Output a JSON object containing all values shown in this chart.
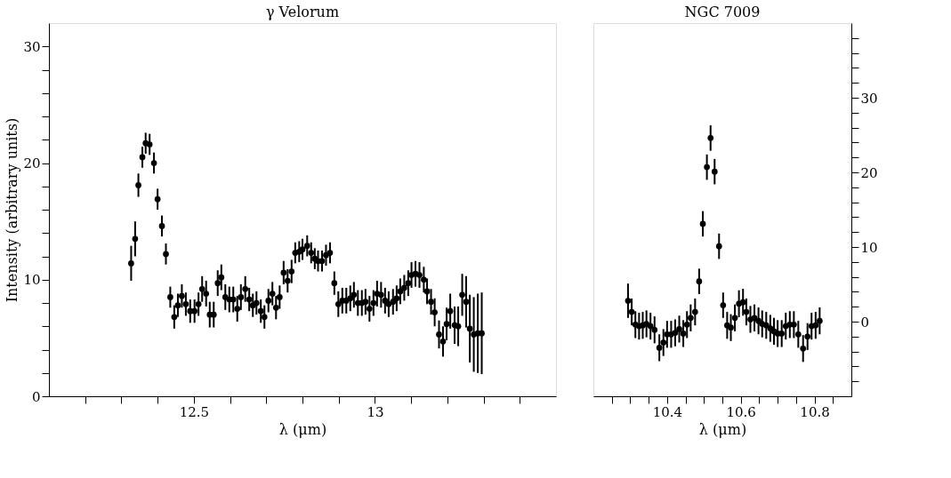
{
  "chart_data": [
    {
      "type": "scatter",
      "title": "γ Velorum",
      "xlabel": "λ (μm)",
      "ylabel": "Intensity (arbitrary units)",
      "marker": "circle",
      "grid": false,
      "xlim": [
        12.1,
        13.5
      ],
      "ylim": [
        0,
        32
      ],
      "xticks": [
        {
          "value": 12.2,
          "label": null
        },
        {
          "value": 12.3,
          "label": null
        },
        {
          "value": 12.4,
          "label": null
        },
        12.5,
        {
          "value": 12.6,
          "label": null
        },
        {
          "value": 12.7,
          "label": null
        },
        {
          "value": 12.8,
          "label": null
        },
        {
          "value": 12.9,
          "label": null
        },
        13,
        {
          "value": 13.1,
          "label": null
        },
        {
          "value": 13.2,
          "label": null
        },
        {
          "value": 13.3,
          "label": null
        },
        {
          "value": 13.4,
          "label": null
        }
      ],
      "yticks": [
        0,
        {
          "value": 2,
          "label": null
        },
        {
          "value": 4,
          "label": null
        },
        {
          "value": 6,
          "label": null
        },
        {
          "value": 8,
          "label": null
        },
        10,
        {
          "value": 12,
          "label": null
        },
        {
          "value": 14,
          "label": null
        },
        {
          "value": 16,
          "label": null
        },
        {
          "value": 18,
          "label": null
        },
        20,
        {
          "value": 22,
          "label": null
        },
        {
          "value": 24,
          "label": null
        },
        {
          "value": 26,
          "label": null
        },
        {
          "value": 28,
          "label": null
        },
        30
      ],
      "series": [
        {
          "color": "#000000",
          "x": [
            12.327,
            12.338,
            12.347,
            12.358,
            12.367,
            12.378,
            12.39,
            12.4,
            12.412,
            12.423,
            12.435,
            12.446,
            12.456,
            12.467,
            12.478,
            12.49,
            12.502,
            12.513,
            12.523,
            12.534,
            12.544,
            12.555,
            12.566,
            12.576,
            12.587,
            12.598,
            12.609,
            12.62,
            12.63,
            12.642,
            12.653,
            12.663,
            12.673,
            12.685,
            12.695,
            12.706,
            12.717,
            12.727,
            12.737,
            12.748,
            12.759,
            12.77,
            12.78,
            12.791,
            12.8,
            12.813,
            12.824,
            12.834,
            12.843,
            12.854,
            12.865,
            12.876,
            12.888,
            12.899,
            12.91,
            12.921,
            12.932,
            12.942,
            12.953,
            12.964,
            12.974,
            12.985,
            12.996,
            13.006,
            13.017,
            13.028,
            13.038,
            13.05,
            13.06,
            13.07,
            13.081,
            13.092,
            13.101,
            13.112,
            13.123,
            13.135,
            13.144,
            13.155,
            13.165,
            13.177,
            13.188,
            13.198,
            13.208,
            13.22,
            13.23,
            13.241,
            13.252,
            13.262,
            13.273,
            13.284,
            13.295
          ],
          "values": [
            11.4,
            13.5,
            18.1,
            20.5,
            21.7,
            21.6,
            20.0,
            16.9,
            14.6,
            12.2,
            8.5,
            6.8,
            7.8,
            8.6,
            7.9,
            7.3,
            7.3,
            7.9,
            9.2,
            8.8,
            7.0,
            7.0,
            9.7,
            10.2,
            8.5,
            8.3,
            8.3,
            7.5,
            8.5,
            9.2,
            8.3,
            7.8,
            8.0,
            7.3,
            6.8,
            8.2,
            8.8,
            7.6,
            8.5,
            10.6,
            9.9,
            10.7,
            12.3,
            12.4,
            12.6,
            12.9,
            12.3,
            11.8,
            11.6,
            11.6,
            12.1,
            12.3,
            9.7,
            7.9,
            8.2,
            8.2,
            8.4,
            8.7,
            8.0,
            8.0,
            8.1,
            7.5,
            8.0,
            8.8,
            8.7,
            8.2,
            7.9,
            8.1,
            8.4,
            9.0,
            9.3,
            9.7,
            10.4,
            10.5,
            10.4,
            10.0,
            9.0,
            8.1,
            7.2,
            5.3,
            4.7,
            6.2,
            7.3,
            6.1,
            6.0,
            8.7,
            8.1,
            5.8,
            5.3,
            5.4,
            5.4
          ],
          "errors": [
            1.5,
            1.5,
            1.0,
            0.9,
            0.9,
            0.9,
            0.9,
            0.9,
            0.9,
            0.9,
            0.9,
            1.0,
            1.0,
            1.0,
            1.0,
            1.0,
            1.0,
            1.0,
            1.1,
            1.1,
            1.1,
            1.1,
            1.1,
            1.1,
            1.1,
            1.1,
            1.1,
            1.1,
            1.1,
            1.1,
            1.0,
            1.0,
            1.0,
            1.0,
            1.0,
            1.0,
            1.0,
            1.0,
            1.0,
            1.0,
            1.0,
            1.0,
            0.9,
            0.9,
            0.9,
            0.9,
            0.9,
            0.9,
            0.9,
            0.9,
            0.9,
            0.9,
            1.0,
            1.1,
            1.1,
            1.1,
            1.1,
            1.1,
            1.1,
            1.1,
            1.1,
            1.1,
            1.1,
            1.1,
            1.1,
            1.1,
            1.1,
            1.1,
            1.1,
            1.1,
            1.1,
            1.1,
            1.1,
            1.1,
            1.1,
            1.1,
            1.1,
            1.1,
            1.2,
            1.2,
            1.3,
            1.4,
            1.5,
            1.6,
            1.7,
            1.8,
            2.2,
            2.9,
            3.2,
            3.4,
            3.5
          ]
        }
      ]
    },
    {
      "type": "scatter",
      "title": "NGC 7009",
      "xlabel": "λ (μm)",
      "marker": "circle",
      "grid": false,
      "xlim": [
        10.2,
        10.9
      ],
      "y2lim": [
        -10,
        40
      ],
      "xticks": [
        {
          "value": 10.25,
          "label": null
        },
        {
          "value": 10.3,
          "label": null
        },
        {
          "value": 10.35,
          "label": null
        },
        10.4,
        {
          "value": 10.45,
          "label": null
        },
        {
          "value": 10.5,
          "label": null
        },
        {
          "value": 10.55,
          "label": null
        },
        10.6,
        {
          "value": 10.65,
          "label": null
        },
        {
          "value": 10.7,
          "label": null
        },
        {
          "value": 10.75,
          "label": null
        },
        10.8,
        {
          "value": 10.85,
          "label": null
        }
      ],
      "y2ticks": [
        {
          "value": -8,
          "label": null
        },
        {
          "value": -6,
          "label": null
        },
        {
          "value": -4,
          "label": null
        },
        {
          "value": -2,
          "label": null
        },
        0,
        {
          "value": 2,
          "label": null
        },
        {
          "value": 4,
          "label": null
        },
        {
          "value": 6,
          "label": null
        },
        {
          "value": 8,
          "label": null
        },
        10,
        {
          "value": 12,
          "label": null
        },
        {
          "value": 14,
          "label": null
        },
        {
          "value": 16,
          "label": null
        },
        {
          "value": 18,
          "label": null
        },
        20,
        {
          "value": 22,
          "label": null
        },
        {
          "value": 24,
          "label": null
        },
        {
          "value": 26,
          "label": null
        },
        {
          "value": 28,
          "label": null
        },
        30,
        {
          "value": 32,
          "label": null
        },
        {
          "value": 34,
          "label": null
        },
        {
          "value": 36,
          "label": null
        },
        {
          "value": 38,
          "label": null
        }
      ],
      "series": [
        {
          "color": "#000000",
          "axis": "y2",
          "x": [
            10.294,
            10.304,
            10.314,
            10.324,
            10.334,
            10.344,
            10.355,
            10.366,
            10.379,
            10.39,
            10.4,
            10.411,
            10.422,
            10.433,
            10.444,
            10.454,
            10.464,
            10.476,
            10.487,
            10.497,
            10.508,
            10.518,
            10.529,
            10.541,
            10.552,
            10.563,
            10.573,
            10.584,
            10.595,
            10.606,
            10.615,
            10.626,
            10.637,
            10.648,
            10.658,
            10.669,
            10.68,
            10.69,
            10.7,
            10.711,
            10.722,
            10.733,
            10.744,
            10.756,
            10.769,
            10.781,
            10.792,
            10.803,
            10.814
          ],
          "values": [
            2.8,
            1.3,
            -0.4,
            -0.6,
            -0.5,
            -0.3,
            -0.6,
            -1.1,
            -3.5,
            -2.8,
            -1.7,
            -1.7,
            -1.5,
            -1.0,
            -1.6,
            -0.4,
            0.5,
            1.3,
            5.4,
            13.1,
            20.7,
            24.6,
            20.1,
            10.1,
            2.2,
            -0.5,
            -0.8,
            0.5,
            2.4,
            2.6,
            1.3,
            0.3,
            0.5,
            0.1,
            -0.3,
            -0.5,
            -0.9,
            -1.3,
            -1.6,
            -1.6,
            -0.6,
            -0.4,
            -0.4,
            -1.7,
            -3.6,
            -2.0,
            -0.6,
            -0.5,
            0.1
          ],
          "errors": [
            2.3,
            1.8,
            1.8,
            1.8,
            1.8,
            1.8,
            1.8,
            1.8,
            1.8,
            1.8,
            1.8,
            1.8,
            1.8,
            1.8,
            1.8,
            1.8,
            1.8,
            1.8,
            1.7,
            1.7,
            1.7,
            1.7,
            1.7,
            1.7,
            1.7,
            1.8,
            1.8,
            1.8,
            1.8,
            1.8,
            1.8,
            1.8,
            1.8,
            1.8,
            1.8,
            1.8,
            1.8,
            1.8,
            1.8,
            1.8,
            1.8,
            1.8,
            1.8,
            1.8,
            1.8,
            1.8,
            1.8,
            1.8,
            1.8
          ]
        }
      ]
    }
  ]
}
